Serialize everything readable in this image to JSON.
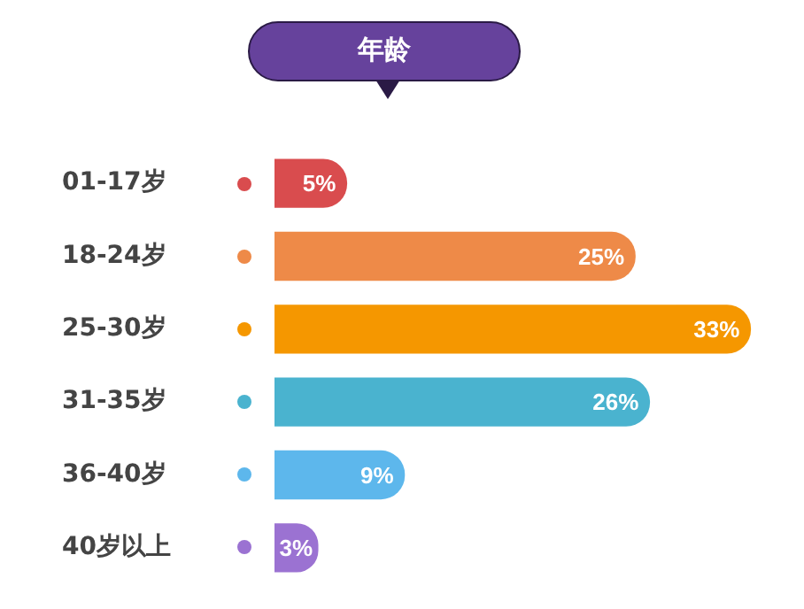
{
  "chart_data": {
    "type": "bar",
    "orientation": "horizontal",
    "title": "年龄",
    "categories": [
      "01-17岁",
      "18-24岁",
      "25-30岁",
      "31-35岁",
      "36-40岁",
      "40岁以上"
    ],
    "values": [
      5,
      25,
      33,
      26,
      9,
      3
    ],
    "colors": [
      "#d94c4e",
      "#ee8a48",
      "#f59700",
      "#4ab3cf",
      "#5db7ec",
      "#9b72d2"
    ],
    "value_labels": [
      "5%",
      "25%",
      "33%",
      "26%",
      "9%",
      "3%"
    ],
    "legend": false
  }
}
